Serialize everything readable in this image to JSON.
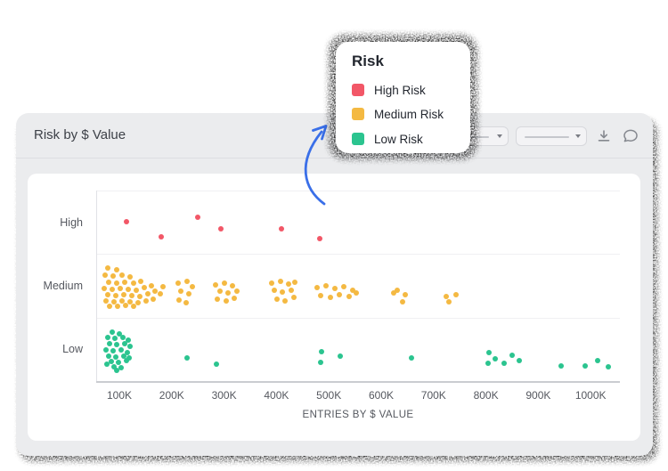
{
  "window": {
    "title": "Risk by $ Value",
    "toolbar": {
      "dropdown_count": 2,
      "icons": [
        "download-icon",
        "comment-icon"
      ]
    }
  },
  "legend": {
    "title": "Risk",
    "items": [
      {
        "label": "High Risk",
        "color": "#f25767"
      },
      {
        "label": "Medium Risk",
        "color": "#f4b942"
      },
      {
        "label": "Low Risk",
        "color": "#2bc48f"
      }
    ]
  },
  "chart_data": {
    "type": "scatter",
    "title": "Risk by $ Value",
    "xlabel": "ENTRIES BY $ VALUE",
    "x_ticks": [
      "100K",
      "200K",
      "300K",
      "400K",
      "500K",
      "600K",
      "700K",
      "800K",
      "900K",
      "1000K"
    ],
    "x_range_k": [
      56,
      1056
    ],
    "categories": [
      "High",
      "Medium",
      "Low"
    ],
    "grid": "horizontal-bands",
    "legend_position": "floating-card",
    "series": [
      {
        "name": "High Risk",
        "category": "High",
        "color": "#f25767",
        "points_k": [
          [
            114,
            -1
          ],
          [
            180,
            16
          ],
          [
            250,
            -6
          ],
          [
            294,
            7
          ],
          [
            410,
            7
          ],
          [
            483,
            18
          ]
        ]
      },
      {
        "name": "Medium Risk",
        "category": "Medium",
        "color": "#f4b942",
        "points_k": [
          [
            78,
            -20
          ],
          [
            95,
            -18
          ],
          [
            73,
            -12
          ],
          [
            88,
            -11
          ],
          [
            105,
            -12
          ],
          [
            120,
            -10
          ],
          [
            80,
            -4
          ],
          [
            95,
            -3
          ],
          [
            110,
            -4
          ],
          [
            127,
            -3
          ],
          [
            141,
            -5
          ],
          [
            71,
            3
          ],
          [
            86,
            4
          ],
          [
            102,
            3
          ],
          [
            117,
            4
          ],
          [
            132,
            5
          ],
          [
            148,
            2
          ],
          [
            161,
            0
          ],
          [
            78,
            10
          ],
          [
            93,
            11
          ],
          [
            109,
            10
          ],
          [
            124,
            11
          ],
          [
            139,
            12
          ],
          [
            154,
            9
          ],
          [
            168,
            6
          ],
          [
            74,
            17
          ],
          [
            90,
            18
          ],
          [
            105,
            17
          ],
          [
            120,
            18
          ],
          [
            136,
            19
          ],
          [
            151,
            17
          ],
          [
            81,
            23
          ],
          [
            97,
            23
          ],
          [
            112,
            22
          ],
          [
            127,
            23
          ],
          [
            165,
            15
          ],
          [
            178,
            9
          ],
          [
            183,
            1
          ],
          [
            212,
            -3
          ],
          [
            229,
            -5
          ],
          [
            239,
            1
          ],
          [
            217,
            6
          ],
          [
            233,
            9
          ],
          [
            214,
            16
          ],
          [
            228,
            19
          ],
          [
            284,
            -1
          ],
          [
            301,
            -3
          ],
          [
            316,
            0
          ],
          [
            292,
            6
          ],
          [
            308,
            8
          ],
          [
            325,
            6
          ],
          [
            287,
            15
          ],
          [
            304,
            17
          ],
          [
            319,
            14
          ],
          [
            391,
            -3
          ],
          [
            408,
            -5
          ],
          [
            423,
            -2
          ],
          [
            435,
            -4
          ],
          [
            396,
            5
          ],
          [
            411,
            7
          ],
          [
            428,
            5
          ],
          [
            401,
            15
          ],
          [
            416,
            17
          ],
          [
            433,
            13
          ],
          [
            478,
            2
          ],
          [
            495,
            0
          ],
          [
            512,
            3
          ],
          [
            529,
            1
          ],
          [
            546,
            5
          ],
          [
            484,
            11
          ],
          [
            503,
            13
          ],
          [
            520,
            10
          ],
          [
            539,
            12
          ],
          [
            552,
            8
          ],
          [
            624,
            8
          ],
          [
            631,
            5
          ],
          [
            641,
            18
          ],
          [
            646,
            10
          ],
          [
            724,
            12
          ],
          [
            729,
            18
          ],
          [
            743,
            10
          ]
        ]
      },
      {
        "name": "Low Risk",
        "category": "Low",
        "color": "#2bc48f",
        "points_k": [
          [
            86,
            -19
          ],
          [
            100,
            -17
          ],
          [
            78,
            -13
          ],
          [
            91,
            -12
          ],
          [
            107,
            -13
          ],
          [
            117,
            -10
          ],
          [
            81,
            -6
          ],
          [
            95,
            -5
          ],
          [
            110,
            -6
          ],
          [
            120,
            -3
          ],
          [
            74,
            1
          ],
          [
            88,
            2
          ],
          [
            103,
            1
          ],
          [
            115,
            4
          ],
          [
            80,
            8
          ],
          [
            93,
            9
          ],
          [
            109,
            8
          ],
          [
            85,
            14
          ],
          [
            98,
            15
          ],
          [
            114,
            13
          ],
          [
            90,
            20
          ],
          [
            103,
            21
          ],
          [
            95,
            24
          ],
          [
            119,
            10
          ],
          [
            76,
            17
          ],
          [
            229,
            10
          ],
          [
            285,
            17
          ],
          [
            486,
            3
          ],
          [
            484,
            15
          ],
          [
            522,
            8
          ],
          [
            658,
            10
          ],
          [
            806,
            4
          ],
          [
            804,
            16
          ],
          [
            818,
            11
          ],
          [
            835,
            16
          ],
          [
            850,
            7
          ],
          [
            864,
            13
          ],
          [
            944,
            19
          ],
          [
            990,
            19
          ],
          [
            1013,
            13
          ],
          [
            1034,
            20
          ]
        ]
      }
    ]
  }
}
